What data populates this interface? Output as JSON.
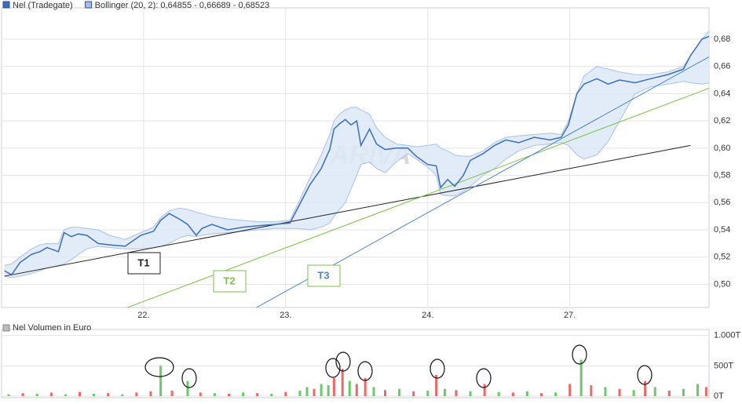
{
  "chart_data": [
    {
      "type": "line",
      "watermark": "ARIVA",
      "x": [
        0.2,
        0.7,
        1.3,
        2.1,
        2.7,
        3.2,
        4.0,
        4.4,
        4.9,
        5.4,
        6.0,
        6.8,
        7.6,
        8.7,
        9.8,
        10.7,
        11.2,
        11.8,
        12.5,
        13.1,
        13.7,
        14.1,
        14.8,
        15.9,
        17.0,
        18.1,
        19.2,
        20.3,
        20.9,
        21.7,
        22.5,
        23.1,
        23.4,
        23.8,
        24.2,
        24.6,
        25.0,
        25.3,
        25.9,
        26.4,
        27.0,
        27.8,
        28.6,
        29.2,
        30.0,
        30.6,
        30.9,
        31.4,
        31.9,
        32.5,
        33.0,
        33.9,
        34.7,
        35.5,
        36.4,
        37.5,
        38.6,
        39.4,
        39.9,
        40.5,
        41.0,
        41.9,
        42.7,
        43.5,
        44.6,
        45.7,
        46.9,
        48.0,
        48.5,
        49.3,
        49.8
      ],
      "series": [
        {
          "name": "Nel (Tradegate)",
          "color": "#3a6fb7",
          "values": [
            0.51,
            0.507,
            0.516,
            0.522,
            0.524,
            0.527,
            0.524,
            0.538,
            0.535,
            0.537,
            0.536,
            0.53,
            0.529,
            0.528,
            0.536,
            0.539,
            0.547,
            0.552,
            0.548,
            0.544,
            0.536,
            0.541,
            0.544,
            0.54,
            0.542,
            0.543,
            0.544,
            0.545,
            0.557,
            0.573,
            0.585,
            0.599,
            0.614,
            0.618,
            0.621,
            0.617,
            0.62,
            0.602,
            0.614,
            0.603,
            0.599,
            0.6,
            0.6,
            0.594,
            0.588,
            0.587,
            0.571,
            0.577,
            0.572,
            0.58,
            0.591,
            0.596,
            0.602,
            0.606,
            0.604,
            0.608,
            0.606,
            0.608,
            0.617,
            0.64,
            0.647,
            0.651,
            0.647,
            0.65,
            0.648,
            0.651,
            0.654,
            0.658,
            0.668,
            0.68,
            0.682
          ]
        },
        {
          "name": "Bollinger (20, 2): 0,64855 - 0,66689 - 0,68523",
          "color": "#a9c0e6",
          "upper": [
            0.514,
            0.515,
            0.52,
            0.526,
            0.529,
            0.53,
            0.53,
            0.54,
            0.542,
            0.542,
            0.541,
            0.54,
            0.536,
            0.533,
            0.538,
            0.542,
            0.549,
            0.554,
            0.556,
            0.555,
            0.553,
            0.552,
            0.55,
            0.548,
            0.547,
            0.546,
            0.546,
            0.547,
            0.56,
            0.578,
            0.595,
            0.61,
            0.62,
            0.625,
            0.628,
            0.63,
            0.63,
            0.628,
            0.625,
            0.615,
            0.608,
            0.603,
            0.602,
            0.601,
            0.602,
            0.603,
            0.6,
            0.598,
            0.595,
            0.594,
            0.594,
            0.598,
            0.604,
            0.608,
            0.609,
            0.61,
            0.611,
            0.61,
            0.62,
            0.64,
            0.653,
            0.66,
            0.658,
            0.656,
            0.654,
            0.654,
            0.656,
            0.66,
            0.668,
            0.68,
            0.686
          ],
          "lower": [
            0.506,
            0.505,
            0.506,
            0.508,
            0.51,
            0.512,
            0.514,
            0.515,
            0.518,
            0.522,
            0.526,
            0.528,
            0.527,
            0.526,
            0.526,
            0.527,
            0.528,
            0.53,
            0.534,
            0.536,
            0.535,
            0.536,
            0.537,
            0.538,
            0.539,
            0.54,
            0.541,
            0.541,
            0.541,
            0.54,
            0.542,
            0.545,
            0.55,
            0.555,
            0.56,
            0.57,
            0.58,
            0.588,
            0.59,
            0.585,
            0.582,
            0.59,
            0.596,
            0.592,
            0.586,
            0.58,
            0.566,
            0.565,
            0.565,
            0.568,
            0.572,
            0.58,
            0.585,
            0.592,
            0.598,
            0.602,
            0.603,
            0.604,
            0.602,
            0.595,
            0.592,
            0.595,
            0.605,
            0.62,
            0.64,
            0.645,
            0.647,
            0.649,
            0.648,
            0.647,
            0.648
          ]
        }
      ],
      "trendlines": [
        {
          "label": "T1",
          "color": "#222222",
          "x": [
            0.2,
            48.5
          ],
          "values": [
            0.506,
            0.602
          ]
        },
        {
          "label": "T2",
          "color": "#7cc04a",
          "x": [
            8.1,
            49.8
          ],
          "values": [
            0.48,
            0.644
          ]
        },
        {
          "label": "T3",
          "color": "#4a86c8",
          "x": [
            17.6,
            49.8
          ],
          "values": [
            0.481,
            0.667
          ]
        }
      ],
      "xlim": [
        0,
        49.8
      ],
      "xticks": [
        {
          "value": 10,
          "label": "22."
        },
        {
          "value": 20,
          "label": "23."
        },
        {
          "value": 30,
          "label": "24."
        },
        {
          "value": 40,
          "label": "27."
        }
      ],
      "ylim": [
        0.483,
        0.703
      ],
      "yticks": [
        {
          "value": 0.5,
          "label": "0,50"
        },
        {
          "value": 0.52,
          "label": "0,52"
        },
        {
          "value": 0.54,
          "label": "0,54"
        },
        {
          "value": 0.56,
          "label": "0,56"
        },
        {
          "value": 0.58,
          "label": "0,58"
        },
        {
          "value": 0.6,
          "label": "0,60"
        },
        {
          "value": 0.62,
          "label": "0,62"
        },
        {
          "value": 0.64,
          "label": "0,64"
        },
        {
          "value": 0.66,
          "label": "0,66"
        },
        {
          "value": 0.68,
          "label": "0,68"
        }
      ],
      "grid": true
    },
    {
      "type": "bar",
      "title": "Nel Volumen in Euro",
      "color": "#bbbbbb",
      "x": [
        0.5,
        1.5,
        2.5,
        3.5,
        4.5,
        5.5,
        6.5,
        7.5,
        8.5,
        9.5,
        10.5,
        11.2,
        12.0,
        13.1,
        14.0,
        15.0,
        16.0,
        17.0,
        18.0,
        19.0,
        20.0,
        21.0,
        21.5,
        22.0,
        22.5,
        23.0,
        23.4,
        24.0,
        24.5,
        25.0,
        25.6,
        26.2,
        27.0,
        28.0,
        29.0,
        30.0,
        30.6,
        31.2,
        32.0,
        33.0,
        34.0,
        35.0,
        36.0,
        37.0,
        38.0,
        39.0,
        40.0,
        40.8,
        41.5,
        42.5,
        43.5,
        44.5,
        45.3,
        46.0,
        47.0,
        48.0,
        49.0,
        49.6
      ],
      "values": [
        30000,
        50000,
        40000,
        60000,
        30000,
        70000,
        40000,
        50000,
        30000,
        60000,
        80000,
        500000,
        90000,
        250000,
        60000,
        50000,
        40000,
        60000,
        50000,
        40000,
        70000,
        90000,
        150000,
        120000,
        200000,
        180000,
        300000,
        450000,
        250000,
        200000,
        300000,
        150000,
        100000,
        120000,
        80000,
        90000,
        350000,
        120000,
        100000,
        80000,
        200000,
        70000,
        60000,
        80000,
        50000,
        60000,
        200000,
        600000,
        180000,
        150000,
        120000,
        100000,
        250000,
        150000,
        90000,
        120000,
        200000,
        150000
      ],
      "colors": [
        "#6cc86c",
        "#e86a6a",
        "#6cc86c",
        "#e86a6a",
        "#6cc86c",
        "#e86a6a",
        "#6cc86c",
        "#e86a6a",
        "#6cc86c",
        "#e86a6a",
        "#e86a6a",
        "#6cc86c",
        "#e86a6a",
        "#6cc86c",
        "#e86a6a",
        "#6cc86c",
        "#e86a6a",
        "#6cc86c",
        "#e86a6a",
        "#6cc86c",
        "#e86a6a",
        "#6cc86c",
        "#6cc86c",
        "#e86a6a",
        "#6cc86c",
        "#6cc86c",
        "#e86a6a",
        "#e86a6a",
        "#6cc86c",
        "#e86a6a",
        "#e86a6a",
        "#6cc86c",
        "#e86a6a",
        "#6cc86c",
        "#e86a6a",
        "#6cc86c",
        "#e86a6a",
        "#6cc86c",
        "#e86a6a",
        "#6cc86c",
        "#e86a6a",
        "#6cc86c",
        "#e86a6a",
        "#6cc86c",
        "#e86a6a",
        "#6cc86c",
        "#e86a6a",
        "#6cc86c",
        "#e86a6a",
        "#6cc86c",
        "#e86a6a",
        "#6cc86c",
        "#e86a6a",
        "#6cc86c",
        "#e86a6a",
        "#6cc86c",
        "#6cc86c",
        "#e86a6a"
      ],
      "xlim": [
        0,
        49.8
      ],
      "ylim": [
        0,
        1100000
      ],
      "yticks": [
        {
          "value": 0,
          "label": "0T"
        },
        {
          "value": 500000,
          "label": "500T"
        },
        {
          "value": 1000000,
          "label": "1.000T"
        }
      ],
      "grid": true
    }
  ]
}
